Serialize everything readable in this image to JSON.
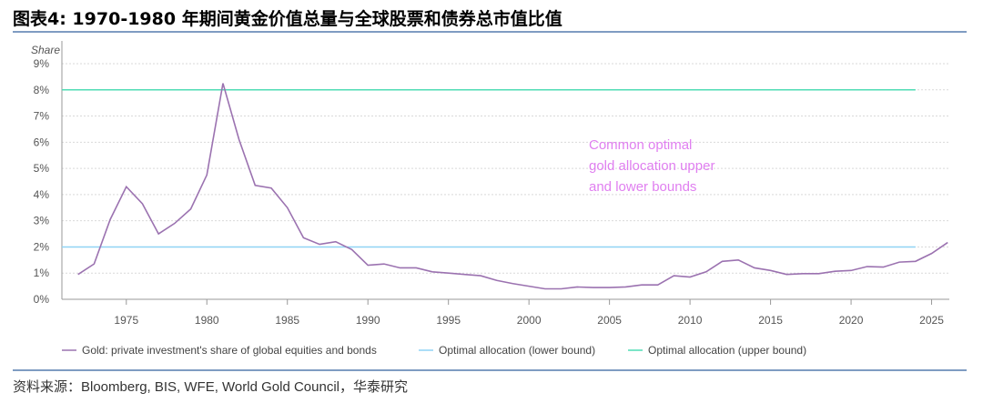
{
  "title": "图表4:   1970-1980 年期间黄金价值总量与全球股票和债券总市值比值",
  "source": "资料来源：Bloomberg, BIS, WFE, World Gold Council，华泰研究",
  "chart_data": {
    "type": "line",
    "title": "",
    "ylabel": "Share",
    "xlabel": "",
    "xlim": [
      1971,
      2026.1
    ],
    "ylim": [
      0,
      9
    ],
    "y_ticks": [
      "0%",
      "1%",
      "2%",
      "3%",
      "4%",
      "5%",
      "6%",
      "7%",
      "8%",
      "9%"
    ],
    "x_ticks": [
      "1975",
      "1980",
      "1985",
      "1990",
      "1995",
      "2000",
      "2005",
      "2010",
      "2015",
      "2020",
      "2025"
    ],
    "grid": "horizontal dotted",
    "legend_position": "bottom",
    "annotation": {
      "lines": [
        "Common optimal",
        "gold allocation upper",
        "and lower bounds"
      ],
      "color": "#e07ff0"
    },
    "series": [
      {
        "name": "Gold: private investment's share of global equities and bonds",
        "color": "#9b72b0",
        "x": [
          1972,
          1973,
          1974,
          1975,
          1976,
          1977,
          1978,
          1979,
          1980,
          1981,
          1982,
          1983,
          1984,
          1985,
          1986,
          1987,
          1988,
          1989,
          1990,
          1991,
          1992,
          1993,
          1994,
          1995,
          1996,
          1997,
          1998,
          1999,
          2000,
          2001,
          2002,
          2003,
          2004,
          2005,
          2006,
          2007,
          2008,
          2009,
          2010,
          2011,
          2012,
          2013,
          2014,
          2015,
          2016,
          2017,
          2018,
          2019,
          2020,
          2021,
          2022,
          2023,
          2024,
          2025,
          2026
        ],
        "y": [
          0.95,
          1.35,
          3.05,
          4.3,
          3.65,
          2.5,
          2.9,
          3.45,
          4.75,
          8.25,
          6.1,
          4.35,
          4.25,
          3.5,
          2.35,
          2.1,
          2.2,
          1.9,
          1.3,
          1.35,
          1.2,
          1.2,
          1.05,
          1.0,
          0.95,
          0.9,
          0.72,
          0.6,
          0.5,
          0.4,
          0.4,
          0.47,
          0.45,
          0.45,
          0.47,
          0.55,
          0.55,
          0.9,
          0.85,
          1.05,
          1.45,
          1.5,
          1.2,
          1.1,
          0.95,
          0.98,
          0.98,
          1.07,
          1.1,
          1.25,
          1.23,
          1.42,
          1.45,
          1.75,
          2.17
        ]
      },
      {
        "name": "Optimal allocation (lower bound)",
        "color": "#8fd3f5",
        "x": [
          1971,
          2024
        ],
        "y": [
          2,
          2
        ]
      },
      {
        "name": "Optimal allocation (upper bound)",
        "color": "#4fdcb4",
        "x": [
          1971,
          2024
        ],
        "y": [
          8,
          8
        ]
      }
    ]
  }
}
